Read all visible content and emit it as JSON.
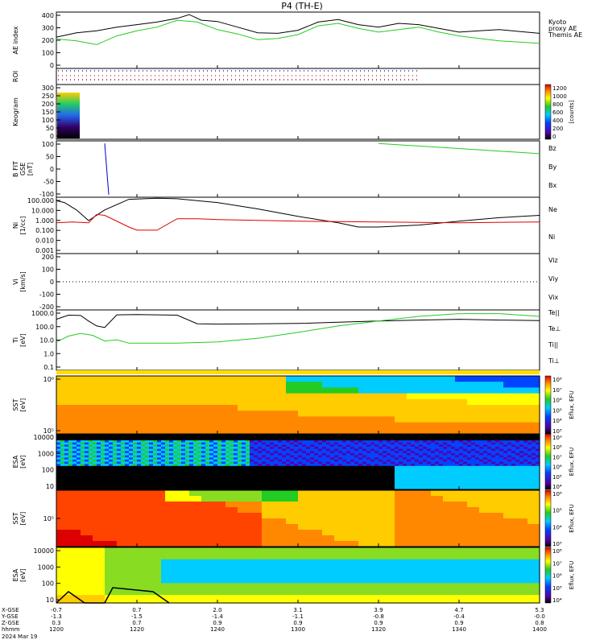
{
  "title": "P4 (TH-E)",
  "footer_date": "2024 Mar 19",
  "orbit_labels": [
    "X-GSE",
    "Y-GSE",
    "Z-GSE",
    "hhmm"
  ],
  "orbit_columns": [
    {
      "x": "-0.7",
      "y": "-1.3",
      "z": "0.3",
      "t": "1200"
    },
    {
      "x": "0.7",
      "y": "-1.5",
      "z": "0.7",
      "t": "1220"
    },
    {
      "x": "2.0",
      "y": "-1.4",
      "z": "0.9",
      "t": "1240"
    },
    {
      "x": "3.1",
      "y": "-1.1",
      "z": "0.9",
      "t": "1300"
    },
    {
      "x": "3.9",
      "y": "-0.8",
      "z": "0.9",
      "t": "1320"
    },
    {
      "x": "4.7",
      "y": "-0.4",
      "z": "0.9",
      "t": "1340"
    },
    {
      "x": "5.3",
      "y": "-0.0",
      "z": "0.8",
      "t": "1400"
    }
  ],
  "colors": {
    "kyoto": "#22cc22",
    "themis": "#000000",
    "red": "#dd0000",
    "green": "#22cc22",
    "blue": "#0000cc"
  },
  "panels": {
    "ae": {
      "ylabel": "AE index",
      "yticks": [
        "400",
        "300",
        "200",
        "100",
        "0"
      ],
      "legend": [
        "Kyoto",
        "proxy AE",
        "Themis AE"
      ]
    },
    "roi": {
      "ylabel": "ROI"
    },
    "keogram": {
      "ylabel": "Keogram",
      "yticks": [
        "300",
        "250",
        "200",
        "150",
        "100",
        "50",
        "0"
      ],
      "cb_ticks": [
        "1200",
        "1000",
        "800",
        "600",
        "400",
        "200",
        "0"
      ],
      "cb_label": "[counts]"
    },
    "bfit": {
      "ylabel": [
        "B FIT",
        "GSE",
        "[nT]"
      ],
      "yticks": [
        "100",
        "50",
        "0",
        "-50",
        "-100"
      ],
      "legend": [
        "Bz",
        "By",
        "Bx"
      ]
    },
    "ni": {
      "ylabel": [
        "Ni",
        "[1/cc]"
      ],
      "yticks": [
        "100.000",
        "10.000",
        "1.000",
        "0.100",
        "0.010",
        "0.001"
      ],
      "legend": [
        "Ne",
        "Ni"
      ]
    },
    "vi": {
      "ylabel": [
        "Vi",
        "[km/s]"
      ],
      "yticks": [
        "200",
        "100",
        "0",
        "-100",
        "-200"
      ],
      "legend": [
        "Viz",
        "Viy",
        "Vix"
      ]
    },
    "ti": {
      "ylabel": [
        "Ti",
        "[eV]"
      ],
      "yticks": [
        "1000.0",
        "100.0",
        "10.0",
        "1.0",
        "0.1"
      ],
      "legend": [
        "Te||",
        "Te⊥",
        "Ti||",
        "Ti⊥"
      ]
    },
    "sst_e": {
      "ylabel": [
        "SST",
        "[eV]"
      ],
      "yticks": [
        "10⁶",
        "10⁵"
      ],
      "cb_ticks": [
        "10⁸",
        "10⁷",
        "10⁶",
        "10⁵",
        "10⁴",
        "10³"
      ],
      "cb_label": "Eflux, EFU"
    },
    "esa_e": {
      "ylabel": [
        "ESA",
        "[eV]"
      ],
      "yticks": [
        "10000",
        "1000",
        "100",
        "10"
      ],
      "cb_ticks": [
        "10⁹",
        "10⁸",
        "10⁷",
        "10⁶",
        "10⁵",
        "10⁴"
      ],
      "cb_label": "Eflux, EFU"
    },
    "sst_i": {
      "ylabel": [
        "SST",
        "[eV]"
      ],
      "yticks": [
        "10⁵"
      ],
      "cb_ticks": [
        "10⁶",
        "10⁵",
        "10⁴",
        "10³"
      ],
      "cb_label": "Eflux, EFU"
    },
    "esa_i": {
      "ylabel": [
        "ESA",
        "[eV]"
      ],
      "yticks": [
        "10000",
        "1000",
        "100",
        "10"
      ],
      "cb_ticks": [
        "10⁸",
        "10⁷",
        "10⁶",
        "10⁵",
        "10⁴"
      ],
      "cb_label": "Eflux, EFU"
    }
  },
  "chart_data": {
    "type": "line",
    "title": "P4 (TH-E)",
    "x_label": "hhmm",
    "x_ticks": [
      "1200",
      "1220",
      "1240",
      "1300",
      "1320",
      "1340",
      "1400"
    ],
    "x_range": [
      0,
      120
    ],
    "series": [
      {
        "name": "Kyoto proxy AE",
        "panel": "ae",
        "x": [
          0,
          5,
          10,
          15,
          20,
          25,
          30,
          35,
          40,
          45,
          50,
          55,
          60,
          65,
          70,
          75,
          80,
          85,
          90,
          95,
          100,
          105,
          110,
          115,
          120
        ],
        "y": [
          205,
          190,
          160,
          230,
          270,
          300,
          355,
          340,
          280,
          245,
          200,
          210,
          240,
          310,
          330,
          290,
          260,
          280,
          300,
          260,
          230,
          210,
          190,
          180,
          170
        ]
      },
      {
        "name": "Themis AE",
        "panel": "ae",
        "x": [
          0,
          5,
          10,
          15,
          20,
          25,
          30,
          33,
          36,
          40,
          45,
          50,
          55,
          60,
          65,
          70,
          75,
          80,
          85,
          90,
          95,
          100,
          105,
          110,
          115,
          120
        ],
        "y": [
          220,
          255,
          270,
          300,
          320,
          340,
          370,
          400,
          355,
          345,
          300,
          255,
          250,
          275,
          340,
          360,
          320,
          300,
          330,
          320,
          290,
          260,
          270,
          280,
          265,
          250
        ]
      },
      {
        "name": "Bx",
        "panel": "bfit",
        "x": [
          12,
          13
        ],
        "y": [
          100,
          -100
        ]
      },
      {
        "name": "By",
        "panel": "bfit",
        "x": [
          80,
          90,
          100,
          110,
          120
        ],
        "y": [
          100,
          90,
          80,
          70,
          60
        ]
      },
      {
        "name": "Ni",
        "panel": "ni",
        "x": [
          0,
          2,
          5,
          8,
          12,
          18,
          25,
          30,
          40,
          50,
          60,
          70,
          75,
          80,
          90,
          100,
          110,
          120
        ],
        "y": [
          60,
          40,
          8,
          0.8,
          8,
          80,
          100,
          90,
          40,
          10,
          2,
          0.5,
          0.2,
          0.2,
          0.3,
          0.7,
          1.5,
          2.5
        ]
      },
      {
        "name": "Ne",
        "panel": "ni",
        "x": [
          0,
          4,
          8,
          10,
          12,
          18,
          20,
          25,
          30,
          35,
          40,
          60,
          80,
          100,
          120
        ],
        "y": [
          0.5,
          0.6,
          0.5,
          3,
          2.5,
          0.2,
          0.1,
          0.1,
          1.2,
          1.2,
          1.0,
          0.7,
          0.6,
          0.5,
          0.6
        ]
      },
      {
        "name": "Te||",
        "panel": "ti",
        "x": [
          0,
          3,
          6,
          8,
          10,
          12,
          15,
          20,
          25,
          30,
          35,
          40,
          50,
          60,
          70,
          80,
          90,
          100,
          110,
          120
        ],
        "y": [
          700,
          1500,
          1400,
          500,
          200,
          150,
          1600,
          1700,
          1600,
          1500,
          300,
          280,
          300,
          320,
          400,
          500,
          600,
          700,
          600,
          550
        ]
      },
      {
        "name": "Ti||",
        "panel": "ti",
        "x": [
          0,
          3,
          6,
          9,
          12,
          15,
          18,
          22,
          25,
          30,
          40,
          50,
          60,
          70,
          80,
          90,
          100,
          110,
          120
        ],
        "y": [
          10,
          30,
          50,
          35,
          12,
          15,
          8,
          8,
          8,
          8,
          10,
          20,
          60,
          200,
          500,
          1200,
          2000,
          2000,
          1200
        ]
      }
    ]
  }
}
